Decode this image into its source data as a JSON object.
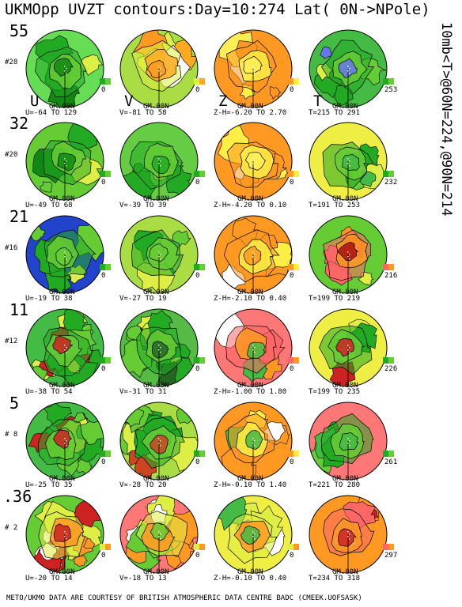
{
  "title": "UKMOpp UVZT contours:Day=10:274 Lat( 0N->NPole)",
  "side_text": "10mb<T>@60N=224,@90N=214",
  "footer": "METO/UKMO DATA ARE COURTESY OF BRITISH ATMOSPHERIC DATA CENTRE BADC (CMEEK.UOFSASK)",
  "var_labels": [
    "U",
    "V",
    "Z",
    "T"
  ],
  "rows": [
    {
      "level": "55",
      "index": "#28",
      "panels": [
        {
          "gm": "GM.00N",
          "range": "U=-64 TO 129",
          "cbar": "0",
          "colors": [
            "#22aa22",
            "#66cc33",
            "#ddee44"
          ],
          "bg": "#66dd55",
          "core": "#118811"
        },
        {
          "gm": "GM.00N",
          "range": "V=-81 TO 58",
          "cbar": "0",
          "colors": [
            "#ddee44",
            "#ffaa22",
            "#ffffff"
          ],
          "bg": "#aadd44",
          "core": "#ff9922"
        },
        {
          "gm": "GM.00N",
          "range": "Z-H=-6.20 TO 2.70",
          "cbar": "0",
          "colors": [
            "#ff9922",
            "#ffee44",
            "#ffffff"
          ],
          "bg": "#ff9922",
          "core": "#ffee55"
        },
        {
          "gm": "GM.00N",
          "range": "T=215 TO 291",
          "cbar": "253",
          "colors": [
            "#22aa22",
            "#66cc33",
            "#ddee44"
          ],
          "bg": "#44bb44",
          "core": "#6677ee"
        }
      ]
    },
    {
      "level": "32",
      "index": "#20",
      "panels": [
        {
          "gm": "GM.00N",
          "range": "U=-49 TO 68",
          "cbar": "0",
          "colors": [
            "#22aa22",
            "#66cc33",
            "#ddee44"
          ],
          "bg": "#66cc33",
          "core": "#118811"
        },
        {
          "gm": "GM.00N",
          "range": "V=-39 TO 39",
          "cbar": "0",
          "colors": [
            "#22aa22",
            "#66cc33",
            "#ddee44"
          ],
          "bg": "#66cc44",
          "core": "#22aa22"
        },
        {
          "gm": "GM.00N",
          "range": "Z-H=-4.20 TO 0.10",
          "cbar": "0",
          "colors": [
            "#ff9922",
            "#ffee44",
            "#ffffff"
          ],
          "bg": "#ff9922",
          "core": "#ffee55"
        },
        {
          "gm": "GM.00N",
          "range": "T=191 TO 253",
          "cbar": "232",
          "colors": [
            "#22aa22",
            "#66cc33",
            "#ddee44"
          ],
          "bg": "#eeee44",
          "core": "#44bb44"
        }
      ]
    },
    {
      "level": "21",
      "index": "#16",
      "panels": [
        {
          "gm": "GM.00N",
          "range": "U=-19 TO 38",
          "cbar": "0",
          "colors": [
            "#22aa22",
            "#66cc33",
            "#ddee44"
          ],
          "bg": "#2244cc",
          "core": "#66cc33"
        },
        {
          "gm": "GM.00N",
          "range": "V=-27 TO 19",
          "cbar": "0",
          "colors": [
            "#22aa22",
            "#66cc33",
            "#ddee44"
          ],
          "bg": "#aadd44",
          "core": "#66cc33"
        },
        {
          "gm": "GM.00N",
          "range": "Z-H=-2.10 TO 0.40",
          "cbar": "0",
          "colors": [
            "#ff9922",
            "#ffee44",
            "#ffffff"
          ],
          "bg": "#ff9922",
          "core": "#ff9922"
        },
        {
          "gm": "GM.00N",
          "range": "T=199 TO 219",
          "cbar": "216",
          "colors": [
            "#ff6666",
            "#ff9922",
            "#ddee44"
          ],
          "bg": "#66cc33",
          "core": "#aa1111"
        }
      ]
    },
    {
      "level": "11",
      "index": "#12",
      "panels": [
        {
          "gm": "GM.00N",
          "range": "U=-38 TO 54",
          "cbar": "0",
          "colors": [
            "#22aa22",
            "#66cc33",
            "#ddee44"
          ],
          "bg": "#44bb44",
          "core": "#cc2222"
        },
        {
          "gm": "GM.00N",
          "range": "V=-31 TO 31",
          "cbar": "0",
          "colors": [
            "#22aa22",
            "#66cc33",
            "#ddee44"
          ],
          "bg": "#55bb44",
          "core": "#226622"
        },
        {
          "gm": "GM.00N",
          "range": "Z-H=-1.00 TO 1.80",
          "cbar": "0",
          "colors": [
            "#ff6666",
            "#ff9922",
            "#ffffff"
          ],
          "bg": "#ff7777",
          "core": "#44bb44"
        },
        {
          "gm": "GM.00N",
          "range": "T=199 TO 235",
          "cbar": "226",
          "colors": [
            "#22aa22",
            "#66cc33",
            "#ddee44"
          ],
          "bg": "#eeee44",
          "core": "#cc2222"
        }
      ]
    },
    {
      "level": "5",
      "index": "# 8",
      "panels": [
        {
          "gm": "GM.00N",
          "range": "U=-25 TO 35",
          "cbar": "0",
          "colors": [
            "#22aa22",
            "#66cc33",
            "#ddee44"
          ],
          "bg": "#44bb44",
          "core": "#cc2222"
        },
        {
          "gm": "GM.00N",
          "range": "V=-28 TO 20",
          "cbar": "0",
          "colors": [
            "#22aa22",
            "#66cc33",
            "#ddee44"
          ],
          "bg": "#aadd44",
          "core": "#cc4422"
        },
        {
          "gm": "GM.00N",
          "range": "Z-H=-0.10 TO 1.40",
          "cbar": "0",
          "colors": [
            "#ff9922",
            "#ffee44",
            "#ffffff"
          ],
          "bg": "#ff9922",
          "core": "#44bb44"
        },
        {
          "gm": "GM.00N",
          "range": "T=221 TO 280",
          "cbar": "261",
          "colors": [
            "#22aa22",
            "#66cc33",
            "#ddee44"
          ],
          "bg": "#ff7777",
          "core": "#44bb44"
        }
      ]
    },
    {
      "level": ".36",
      "index": "# 2",
      "panels": [
        {
          "gm": "GM.00N",
          "range": "U=-20 TO 14",
          "cbar": "0",
          "colors": [
            "#ddee44",
            "#ff9922",
            "#ffffff"
          ],
          "bg": "#66cc33",
          "core": "#cc2222"
        },
        {
          "gm": "GM.00N",
          "range": "V=-18 TO 13",
          "cbar": "0",
          "colors": [
            "#ddee44",
            "#ff9922",
            "#ffffff"
          ],
          "bg": "#ff7777",
          "core": "#66cc33"
        },
        {
          "gm": "GM.00N",
          "range": "Z-H=-0.10 TO 0.40",
          "cbar": "0",
          "colors": [
            "#ddee44",
            "#ff9922",
            "#ffffff"
          ],
          "bg": "#eeee44",
          "core": "#44bb44"
        },
        {
          "gm": "GM.00N",
          "range": "T=234 TO 318",
          "cbar": "297",
          "colors": [
            "#ff6666",
            "#ff9922",
            "#ffffff"
          ],
          "bg": "#ff9922",
          "core": "#cc2222"
        }
      ]
    }
  ]
}
